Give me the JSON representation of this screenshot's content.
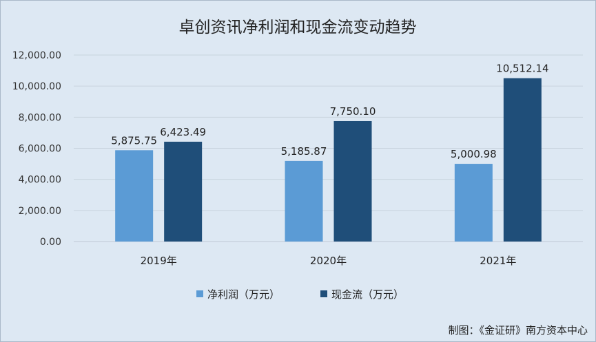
{
  "chart_data": {
    "type": "bar",
    "title": "卓创资讯净利润和现金流变动趋势",
    "categories": [
      "2019年",
      "2020年",
      "2021年"
    ],
    "series": [
      {
        "name": "净利润（万元）",
        "color": "#5b9bd5",
        "values": [
          5875.75,
          5185.87,
          5000.98
        ],
        "labels": [
          "5,875.75",
          "5,185.87",
          "5,000.98"
        ]
      },
      {
        "name": "现金流（万元）",
        "color": "#1f4e79",
        "values": [
          6423.49,
          7750.1,
          10512.14
        ],
        "labels": [
          "6,423.49",
          "7,750.10",
          "10,512.14"
        ]
      }
    ],
    "ylim": [
      0,
      12000
    ],
    "yticks": [
      0,
      2000,
      4000,
      6000,
      8000,
      10000,
      12000
    ],
    "ytick_labels": [
      "0.00",
      "2,000.00",
      "4,000.00",
      "6,000.00",
      "8,000.00",
      "10,000.00",
      "12,000.00"
    ],
    "grid": true,
    "legend_position": "bottom"
  },
  "credit": "制图：《金证研》南方资本中心"
}
